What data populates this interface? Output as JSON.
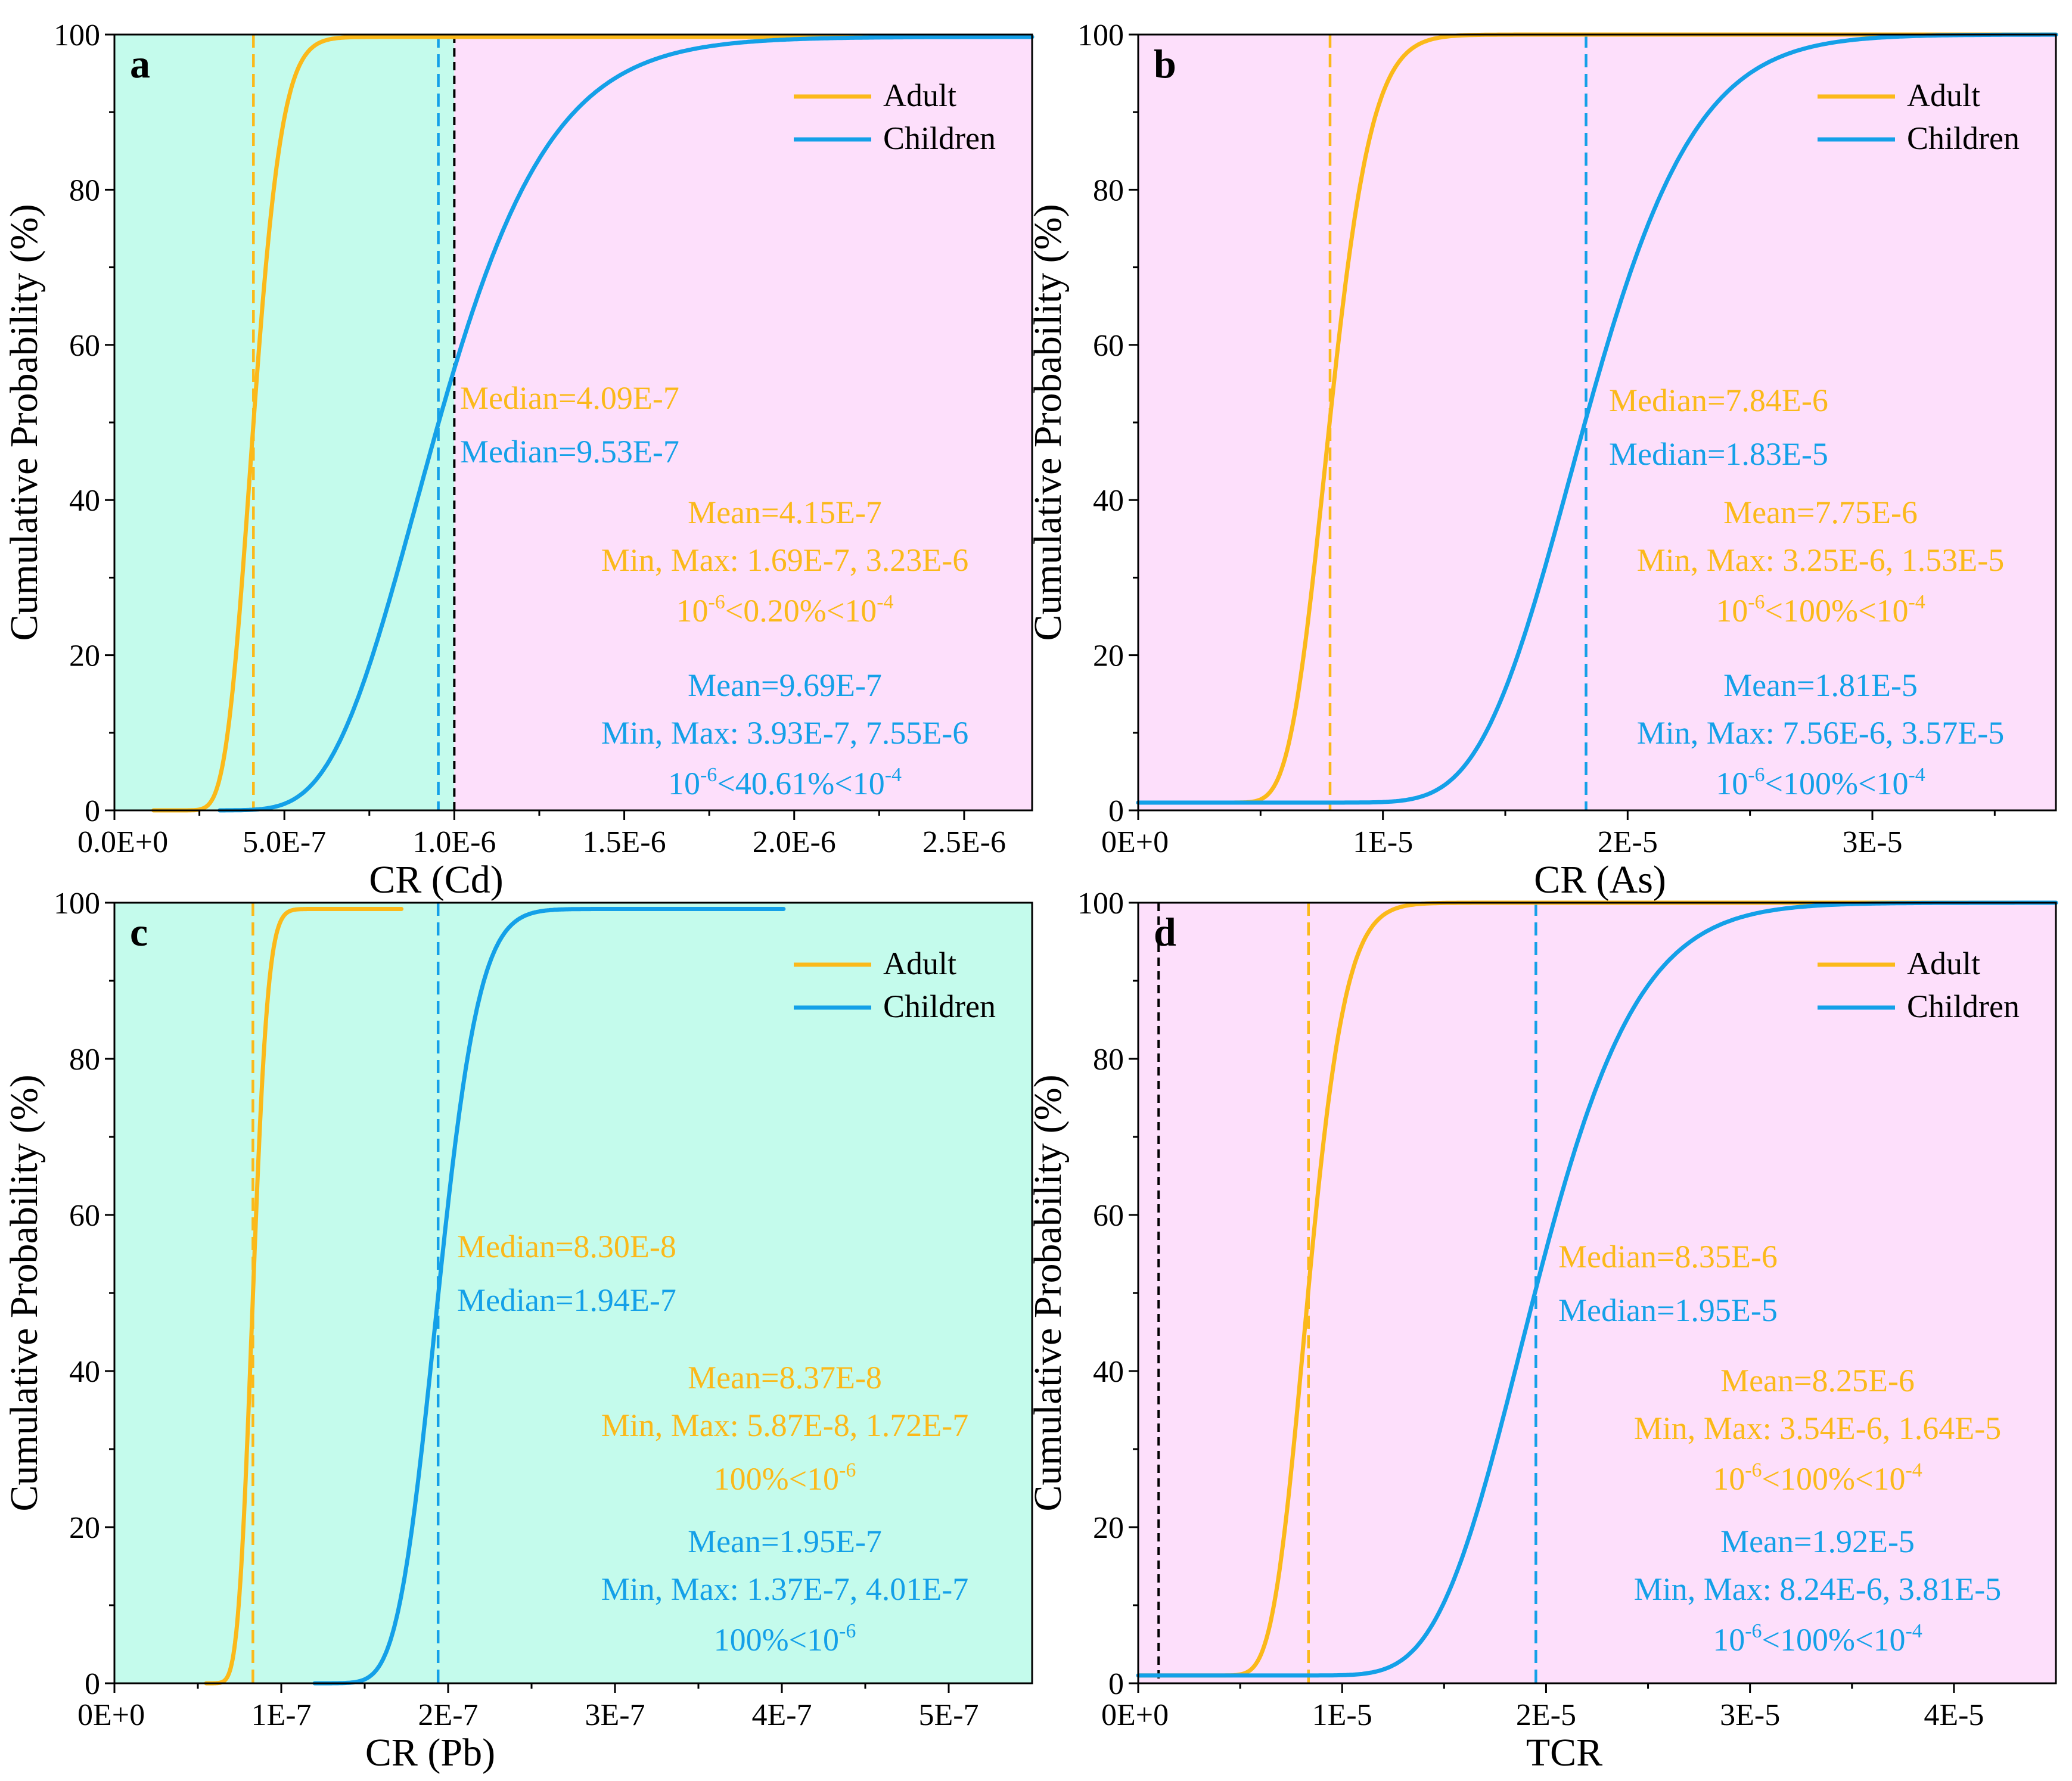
{
  "colors": {
    "adult": "#FBB91A",
    "children": "#14A0E8",
    "bg_green": "#C4FBEC",
    "bg_pink": "#FDDFFB",
    "threshold": "#000000"
  },
  "chart_data": [
    {
      "type": "line",
      "panel": "a",
      "xlabel": "CR (Cd)",
      "ylabel": "Cumulative Probability (%)",
      "xlim": [
        0,
        2.7e-06
      ],
      "ylim": [
        0,
        100
      ],
      "xticks": [
        0,
        5e-07,
        1e-06,
        1.5e-06,
        2e-06,
        2.5e-06
      ],
      "xtick_labels": [
        "0.0E+0",
        "5.0E-7",
        "1.0E-6",
        "1.5E-6",
        "2.0E-6",
        "2.5E-6"
      ],
      "yticks": [
        0,
        20,
        40,
        60,
        80,
        100
      ],
      "ytick_labels": [
        "0",
        "20",
        "40",
        "60",
        "80",
        "100"
      ],
      "background_regions": [
        {
          "x0": 0,
          "x1": 1e-06,
          "color": "green"
        },
        {
          "x0": 1e-06,
          "x1": 2.7e-06,
          "color": "pink"
        }
      ],
      "threshold_line": 1e-06,
      "legend": [
        "Adult",
        "Children"
      ],
      "series": [
        {
          "name": "Adult",
          "median": 4.09e-07,
          "sigma": 0.16,
          "y_floor": 0,
          "x_start": 1.15e-07,
          "x_end": 2.7e-06,
          "y_max": 99.7
        },
        {
          "name": "Children",
          "median": 9.53e-07,
          "sigma": 0.27,
          "y_floor": 0,
          "x_start": 3.1e-07,
          "x_end": 2.7e-06,
          "y_max": 99.7
        }
      ],
      "annotations": {
        "adult_median": "Median=4.09E-7",
        "children_median": "Median=9.53E-7",
        "adult_mean": "Mean=4.15E-7",
        "adult_minmax": "Min, Max: 1.69E-7, 3.23E-6",
        "adult_risk": {
          "left": "10",
          "left_exp": "-6",
          "middle": "<0.20%<10",
          "right_exp": "-4"
        },
        "children_mean": "Mean=9.69E-7",
        "children_minmax": "Min, Max: 3.93E-7, 7.55E-6",
        "children_risk": {
          "left": "10",
          "left_exp": "-6",
          "middle": "<40.61%<10",
          "right_exp": "-4"
        }
      }
    },
    {
      "type": "line",
      "panel": "b",
      "xlabel": "CR (As)",
      "ylabel": "Cumulative Probability (%)",
      "xlim": [
        0,
        3.75e-05
      ],
      "ylim": [
        0,
        100
      ],
      "xticks": [
        0,
        1e-05,
        2e-05,
        3e-05
      ],
      "xtick_labels": [
        "0E+0",
        "1E-5",
        "2E-5",
        "3E-5"
      ],
      "yticks": [
        0,
        20,
        40,
        60,
        80,
        100
      ],
      "ytick_labels": [
        "0",
        "20",
        "40",
        "60",
        "80",
        "100"
      ],
      "background_regions": [
        {
          "x0": 0,
          "x1": 3.75e-05,
          "color": "pink"
        }
      ],
      "threshold_line": null,
      "legend": [
        "Adult",
        "Children"
      ],
      "series": [
        {
          "name": "Adult",
          "median": 7.84e-06,
          "sigma": 0.17,
          "y_floor": 1,
          "x_start": 0,
          "x_end": 3.75e-05,
          "y_max": 100
        },
        {
          "name": "Children",
          "median": 1.83e-05,
          "sigma": 0.19,
          "y_floor": 1,
          "x_start": 0,
          "x_end": 3.75e-05,
          "y_max": 100
        }
      ],
      "annotations": {
        "adult_median": "Median=7.84E-6",
        "children_median": "Median=1.83E-5",
        "adult_mean": "Mean=7.75E-6",
        "adult_minmax": "Min, Max: 3.25E-6, 1.53E-5",
        "adult_risk": {
          "left": "10",
          "left_exp": "-6",
          "middle": "<100%<10",
          "right_exp": "-4"
        },
        "children_mean": "Mean=1.81E-5",
        "children_minmax": "Min, Max: 7.56E-6, 3.57E-5",
        "children_risk": {
          "left": "10",
          "left_exp": "-6",
          "middle": "<100%<10",
          "right_exp": "-4"
        }
      }
    },
    {
      "type": "line",
      "panel": "c",
      "xlabel": "CR (Pb)",
      "ylabel": "Cumulative Probability (%)",
      "xlim": [
        0,
        5.5e-07
      ],
      "ylim": [
        0,
        100
      ],
      "xticks": [
        0,
        1e-07,
        2e-07,
        3e-07,
        4e-07,
        5e-07
      ],
      "xtick_labels": [
        "0E+0",
        "1E-7",
        "2E-7",
        "3E-7",
        "4E-7",
        "5E-7"
      ],
      "yticks": [
        0,
        20,
        40,
        60,
        80,
        100
      ],
      "ytick_labels": [
        "0",
        "20",
        "40",
        "60",
        "80",
        "100"
      ],
      "background_regions": [
        {
          "x0": 0,
          "x1": 5.5e-07,
          "color": "green"
        }
      ],
      "threshold_line": null,
      "legend": [
        "Adult",
        "Children"
      ],
      "series": [
        {
          "name": "Adult",
          "median": 8.3e-08,
          "sigma": 0.085,
          "y_floor": 0,
          "x_start": 5.5e-08,
          "x_end": 1.72e-07,
          "y_max": 99.2
        },
        {
          "name": "Children",
          "median": 1.94e-07,
          "sigma": 0.1,
          "y_floor": 0,
          "x_start": 1.2e-07,
          "x_end": 4.01e-07,
          "y_max": 99.2
        }
      ],
      "annotations": {
        "adult_median": "Median=8.30E-8",
        "children_median": "Median=1.94E-7",
        "adult_mean": "Mean=8.37E-8",
        "adult_minmax": "Min, Max: 5.87E-8, 1.72E-7",
        "adult_risk": {
          "left": "",
          "left_exp": "",
          "middle": "100%<10",
          "right_exp": "-6"
        },
        "children_mean": "Mean=1.95E-7",
        "children_minmax": "Min, Max: 1.37E-7, 4.01E-7",
        "children_risk": {
          "left": "",
          "left_exp": "",
          "middle": "100%<10",
          "right_exp": "-6"
        }
      }
    },
    {
      "type": "line",
      "panel": "d",
      "xlabel": "TCR",
      "ylabel": "Cumulative Probability (%)",
      "xlim": [
        0,
        4.5e-05
      ],
      "ylim": [
        0,
        100
      ],
      "xticks": [
        0,
        1e-05,
        2e-05,
        3e-05,
        4e-05
      ],
      "xtick_labels": [
        "0E+0",
        "1E-5",
        "2E-5",
        "3E-5",
        "4E-5"
      ],
      "yticks": [
        0,
        20,
        40,
        60,
        80,
        100
      ],
      "ytick_labels": [
        "0",
        "20",
        "40",
        "60",
        "80",
        "100"
      ],
      "background_regions": [
        {
          "x0": 0,
          "x1": 4.5e-05,
          "color": "pink"
        }
      ],
      "threshold_line": 1e-06,
      "legend": [
        "Adult",
        "Children"
      ],
      "series": [
        {
          "name": "Adult",
          "median": 8.35e-06,
          "sigma": 0.17,
          "y_floor": 1,
          "x_start": 0,
          "x_end": 4.5e-05,
          "y_max": 100
        },
        {
          "name": "Children",
          "median": 1.95e-05,
          "sigma": 0.2,
          "y_floor": 1,
          "x_start": 0,
          "x_end": 4.5e-05,
          "y_max": 100
        }
      ],
      "annotations": {
        "adult_median": "Median=8.35E-6",
        "children_median": "Median=1.95E-5",
        "adult_mean": "Mean=8.25E-6",
        "adult_minmax": "Min, Max: 3.54E-6, 1.64E-5",
        "adult_risk": {
          "left": "10",
          "left_exp": "-6",
          "middle": "<100%<10",
          "right_exp": "-4"
        },
        "children_mean": "Mean=1.92E-5",
        "children_minmax": "Min, Max: 8.24E-6, 3.81E-5",
        "children_risk": {
          "left": "10",
          "left_exp": "-6",
          "middle": "<100%<10",
          "right_exp": "-4"
        }
      }
    }
  ]
}
